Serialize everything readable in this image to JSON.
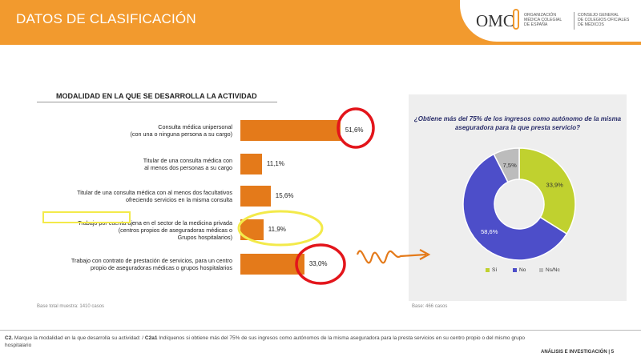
{
  "header": {
    "title": "DATOS DE CLASIFICACIÓN",
    "logo": {
      "acronym": "OMC",
      "org_lines": [
        "ORGANIZACIÓN",
        "MÉDICA COLEGIAL",
        "DE ESPAÑA"
      ],
      "council_lines": [
        "CONSEJO GENERAL",
        "DE COLEGIOS OFICIALES",
        "DE MÉDICOS"
      ]
    }
  },
  "colors": {
    "header_orange": "#f29a2e",
    "bar_orange": "#e47a1a",
    "pie_si": "#c0d12f",
    "pie_no": "#4d4ec9",
    "pie_nsnc": "#bcbcbc",
    "highlight_red": "#e3151b",
    "highlight_yellow": "#f3ea4a",
    "arrow_orange": "#e47a1a"
  },
  "chart_data": [
    {
      "type": "bar",
      "orientation": "horizontal",
      "title": "MODALIDAD EN LA QUE SE DESARROLLA LA ACTIVIDAD",
      "categories": [
        [
          "Consulta médica unipersonal",
          "(con una o ninguna persona a su cargo)"
        ],
        [
          "Titular de una consulta médica con",
          "al menos dos personas a su cargo"
        ],
        [
          "Titular de una consulta médica con al menos dos facultativos",
          "ofreciendo servicios en la misma consulta"
        ],
        [
          "Trabajo por cuenta ajena en el sector de la medicina privada",
          "(centros propios de aseguradoras médicas o",
          "Grupos hospitalarios)"
        ],
        [
          "Trabajo con contrato de prestación de servicios, para un centro",
          "propio de aseguradoras médicas o grupos hospitalarios"
        ]
      ],
      "values": [
        51.6,
        11.1,
        15.6,
        11.9,
        33.0
      ],
      "value_labels": [
        "51,6%",
        "11,1%",
        "15,6%",
        "11,9%",
        "33,0%"
      ],
      "note": "Base total muestra: 1410 casos",
      "highlight_label": "Trabajo por cuenta ajena"
    },
    {
      "type": "pie",
      "style": "donut",
      "title": "¿Obtiene más del 75% de los ingresos como autónomo de la misma aseguradora para la que presta servicio?",
      "categories": [
        "Sí",
        "No",
        "Ns/Nc"
      ],
      "values": [
        33.9,
        58.6,
        7.5
      ],
      "value_labels": [
        "33,9%",
        "58,6%",
        "7,5%"
      ],
      "note": "Base: 466 casos"
    }
  ],
  "footer": {
    "question_prefix": "C2.",
    "question_text": " Marque la modalidad en la que desarrolla su actividad: / ",
    "question2_prefix": "C2a1",
    "question2_text": " Indíquenos si obtiene más del 75% de sus ingresos como autónomos de la misma aseguradora para la presta servicios en su centro propio o del mismo grupo hospitalario",
    "section": "ANÁLISIS E INVESTIGACIÓN",
    "page": "| 5"
  }
}
